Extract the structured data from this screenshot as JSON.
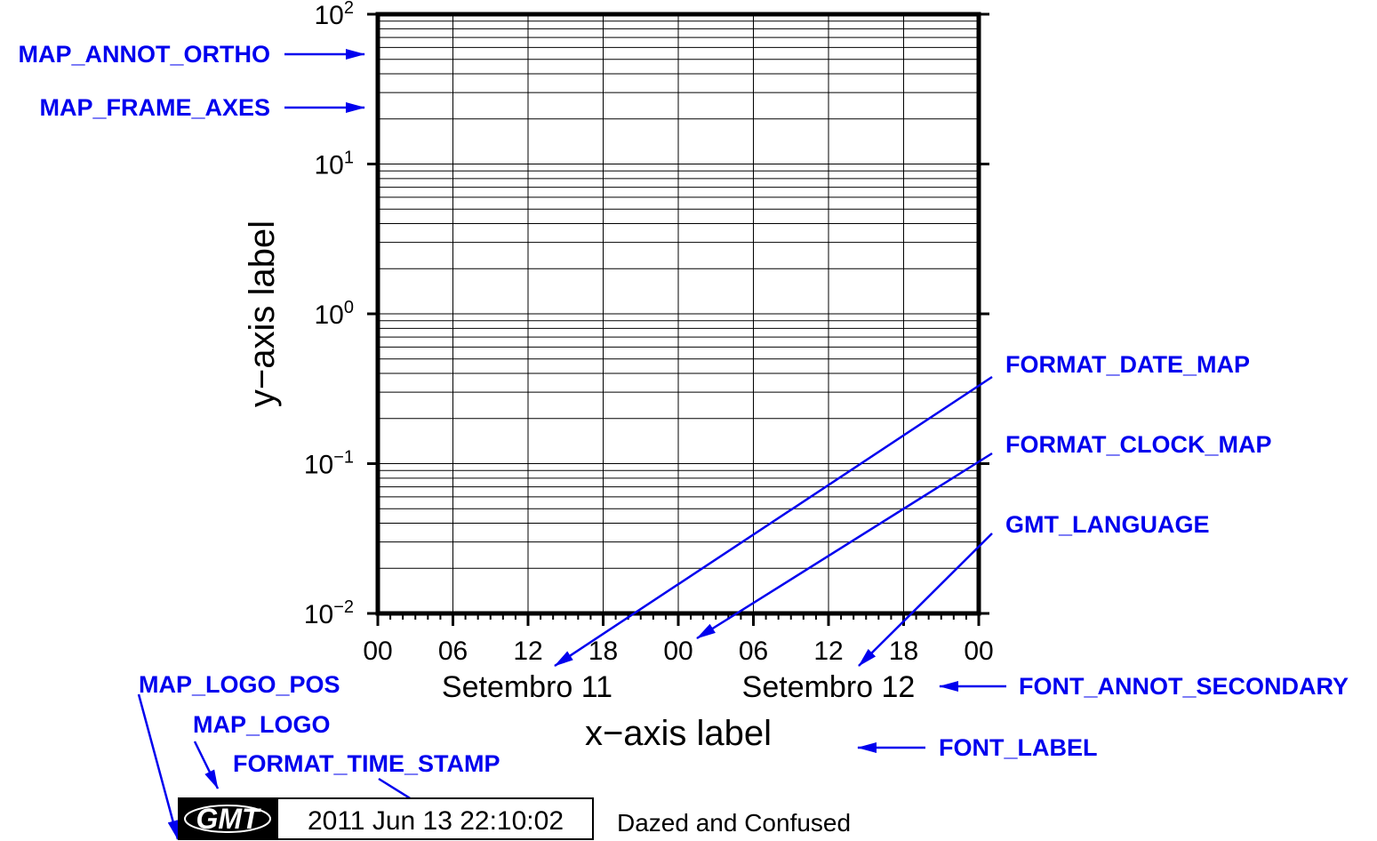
{
  "colors": {
    "callout": "#0000ee",
    "frame": "#000000",
    "grid": "#000000",
    "background": "#ffffff"
  },
  "axes": {
    "x_label": "x−axis label",
    "y_label": "y−axis label",
    "x_ticks": [
      "00",
      "06",
      "12",
      "18",
      "00",
      "06",
      "12",
      "18",
      "00"
    ],
    "x_secondary": [
      "Setembro 11",
      "Setembro 12"
    ],
    "y_ticks": [
      {
        "base": "10",
        "exp": "2"
      },
      {
        "base": "10",
        "exp": "1"
      },
      {
        "base": "10",
        "exp": "0"
      },
      {
        "base": "10",
        "exp": "−1"
      },
      {
        "base": "10",
        "exp": "−2"
      }
    ],
    "y_scale": "log",
    "y_range": [
      0.01,
      100
    ],
    "grid": true
  },
  "callouts": {
    "map_annot_ortho": "MAP_ANNOT_ORTHO",
    "map_frame_axes": "MAP_FRAME_AXES",
    "format_date_map": "FORMAT_DATE_MAP",
    "format_clock_map": "FORMAT_CLOCK_MAP",
    "gmt_language": "GMT_LANGUAGE",
    "font_annot_secondary": "FONT_ANNOT_SECONDARY",
    "font_label": "FONT_LABEL",
    "map_logo_pos": "MAP_LOGO_POS",
    "map_logo": "MAP_LOGO",
    "format_time_stamp": "FORMAT_TIME_STAMP"
  },
  "timestamp": {
    "logo": "GMT",
    "time": "2011 Jun 13 22:10:02",
    "comment": "Dazed and Confused"
  }
}
